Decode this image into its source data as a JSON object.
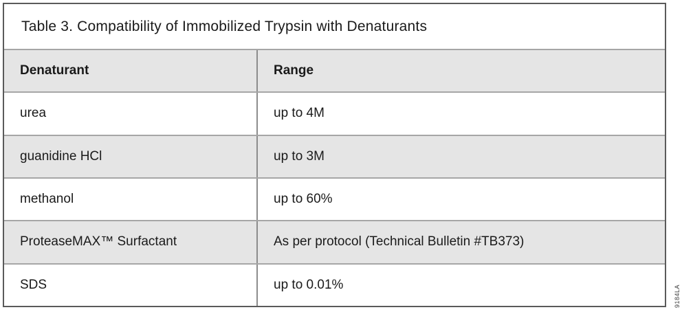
{
  "title": "Table 3. Compatibility of Immobilized Trypsin with Denaturants",
  "table": {
    "columns": [
      "Denaturant",
      "Range"
    ],
    "rows": [
      {
        "denaturant": "urea",
        "range": "up to 4M"
      },
      {
        "denaturant": "guanidine HCl",
        "range": "up to 3M"
      },
      {
        "denaturant": "methanol",
        "range": "up to 60%"
      },
      {
        "denaturant": "ProteaseMAX™ Surfactant",
        "range": "As per protocol (Technical Bulletin #TB373)"
      },
      {
        "denaturant": "SDS",
        "range": "up to 0.01%"
      }
    ]
  },
  "watermark": "9184LA",
  "colors": {
    "row_shaded": "#e5e5e5",
    "row_plain": "#ffffff",
    "border_outer": "#5a5a5a",
    "border_inner": "#a6a6a6",
    "border_column": "#8c8c8c"
  }
}
